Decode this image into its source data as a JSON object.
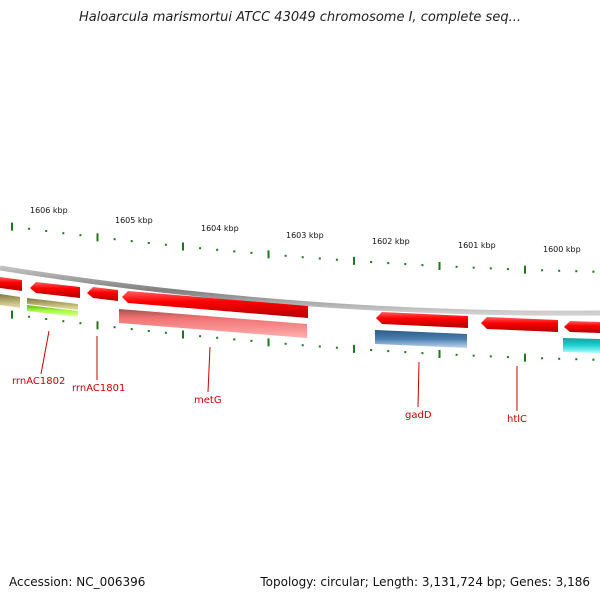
{
  "title": "Haloarcula marismortui ATCC 43049 chromosome I, complete seq...",
  "footer": {
    "accession": "Accession: NC_006396",
    "summary": "Topology: circular; Length: 3,131,724 bp; Genes: 3,186"
  },
  "scale": {
    "labels": [
      "1606 kbp",
      "1605 kbp",
      "1604 kbp",
      "1603 kbp",
      "1602 kbp",
      "1601 kbp",
      "1600 kbp"
    ]
  },
  "genes": [
    {
      "label": "rrnAC1802"
    },
    {
      "label": "rrnAC1801"
    },
    {
      "label": "metG"
    },
    {
      "label": "gadD"
    },
    {
      "label": "htlC"
    }
  ],
  "colors": {
    "backbone": "#8c8c8c",
    "cds_strand": "#ff0000",
    "rna_product": "#a8ff40",
    "blue_product": "#4a7fb0",
    "cyan_product": "#20d0d0",
    "olive_product": "#b8b070",
    "pink_product": "#f48080",
    "tick": "#1a7a1a",
    "label": "#cc0000"
  }
}
